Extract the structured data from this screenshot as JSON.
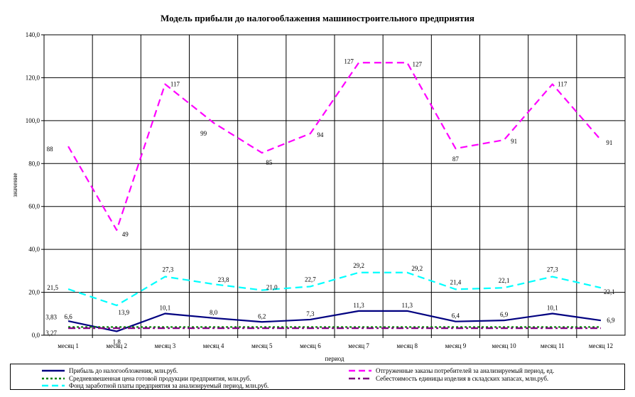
{
  "chart_data": {
    "type": "line",
    "title": "Модель прибыли до налогооблажения машиностроительного предприятия",
    "xlabel": "период",
    "ylabel": "значение",
    "ylim": [
      0,
      140
    ],
    "yticks": [
      "0,0",
      "20,0",
      "40,0",
      "60,0",
      "80,0",
      "100,0",
      "120,0",
      "140,0"
    ],
    "grid": true,
    "legend_position": "bottom",
    "categories": [
      "месяц 1",
      "месяц 2",
      "месяц 3",
      "месяц 4",
      "месяц 5",
      "месяц 6",
      "месяц 7",
      "месяц 8",
      "месяц 9",
      "месяц 10",
      "месяц 11",
      "месяц 12"
    ],
    "series": [
      {
        "name": "Прибыль до налогообложения, млн.руб.",
        "color": "#000080",
        "style": "solid",
        "values": [
          6.6,
          1.8,
          10.1,
          8.0,
          6.2,
          7.3,
          11.3,
          11.3,
          6.4,
          6.9,
          10.1,
          6.9
        ],
        "labels": [
          "6,6",
          "1,8",
          "10,1",
          "8,0",
          "6,2",
          "7,3",
          "11,3",
          "11,3",
          "6,4",
          "6,9",
          "10,1",
          "6,9"
        ]
      },
      {
        "name": "Отгруженные заказы потребителей за анализируемый период, ед.",
        "color": "#ff00ff",
        "style": "dashed",
        "values": [
          88,
          49,
          117,
          99,
          85,
          94,
          127,
          127,
          87,
          91,
          117,
          91
        ],
        "labels": [
          "88",
          "49",
          "117",
          "99",
          "85",
          "94",
          "127",
          "127",
          "87",
          "91",
          "117",
          "91"
        ]
      },
      {
        "name": "Средневзвешенная цена готовой продукции предприятия, млн.руб.",
        "color": "#008000",
        "style": "dotted",
        "values": [
          3.83,
          3.83,
          3.83,
          3.83,
          3.83,
          3.83,
          3.83,
          3.83,
          3.83,
          3.83,
          3.83,
          3.83
        ],
        "labels": [
          "3,83",
          "",
          "",
          "",
          "",
          "",
          "",
          "",
          "",
          "",
          "",
          ""
        ]
      },
      {
        "name": "Себестоимость единицы изделия в складских запасах, млн.руб.",
        "color": "#800080",
        "style": "dashdot",
        "values": [
          3.27,
          3.27,
          3.27,
          3.27,
          3.27,
          3.27,
          3.27,
          3.27,
          3.27,
          3.27,
          3.27,
          3.27
        ],
        "labels": [
          "3,27",
          "",
          "",
          "",
          "",
          "",
          "",
          "",
          "",
          "",
          "",
          ""
        ]
      },
      {
        "name": "Фонд заработной платы предприятия за анализируемый период, млн.руб.",
        "color": "#00ffff",
        "style": "dashed",
        "values": [
          21.5,
          13.9,
          27.3,
          23.8,
          21.0,
          22.7,
          29.2,
          29.2,
          21.4,
          22.1,
          27.3,
          22.1
        ],
        "labels": [
          "21,5",
          "13,9",
          "27,3",
          "23,8",
          "21,0",
          "22,7",
          "29,2",
          "29,2",
          "21,4",
          "22,1",
          "27,3",
          "22,1"
        ]
      }
    ]
  }
}
